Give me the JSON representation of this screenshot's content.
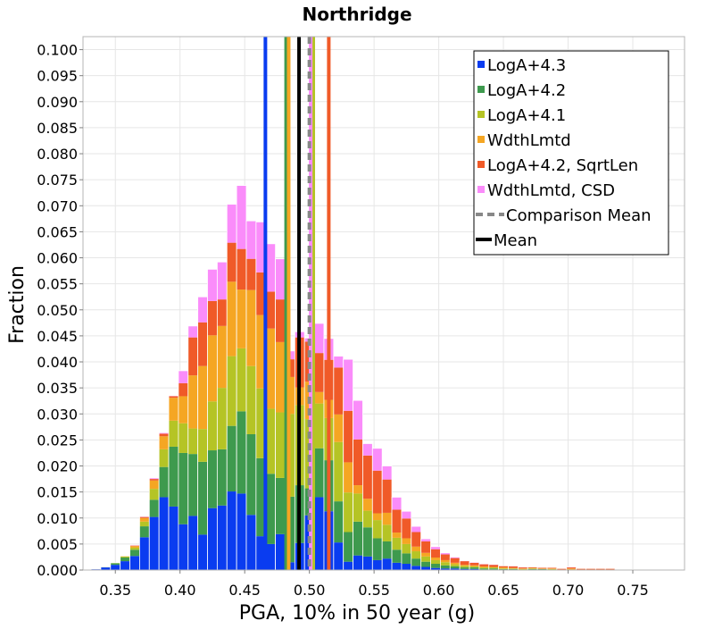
{
  "chart_data": {
    "type": "bar",
    "stacked": true,
    "title": "Northridge",
    "xlabel": "PGA, 10% in 50 year (g)",
    "ylabel": "Fraction",
    "xlim": [
      0.325,
      0.79
    ],
    "ylim": [
      0.0,
      0.1025
    ],
    "grid": true,
    "legend_position": "top-right",
    "x_ticks": [
      0.35,
      0.4,
      0.45,
      0.5,
      0.55,
      0.6,
      0.65,
      0.7,
      0.75
    ],
    "x_tick_labels": [
      "0.35",
      "0.40",
      "0.45",
      "0.50",
      "0.55",
      "0.60",
      "0.65",
      "0.70",
      "0.75"
    ],
    "y_ticks": [
      0.0,
      0.005,
      0.01,
      0.015,
      0.02,
      0.025,
      0.03,
      0.035,
      0.04,
      0.045,
      0.05,
      0.055,
      0.06,
      0.065,
      0.07,
      0.075,
      0.08,
      0.085,
      0.09,
      0.095,
      0.1
    ],
    "y_tick_labels": [
      "0.000",
      "0.005",
      "0.010",
      "0.015",
      "0.020",
      "0.025",
      "0.030",
      "0.035",
      "0.040",
      "0.045",
      "0.050",
      "0.055",
      "0.060",
      "0.065",
      "0.070",
      "0.075",
      "0.080",
      "0.085",
      "0.090",
      "0.095",
      "0.100"
    ],
    "bin_width": 0.0075,
    "x": [
      0.3275,
      0.335,
      0.3425,
      0.35,
      0.3575,
      0.365,
      0.3725,
      0.38,
      0.3875,
      0.395,
      0.4025,
      0.41,
      0.4175,
      0.425,
      0.4325,
      0.44,
      0.4475,
      0.455,
      0.4625,
      0.47,
      0.4775,
      0.485,
      0.4925,
      0.5,
      0.5075,
      0.515,
      0.5225,
      0.53,
      0.5375,
      0.545,
      0.5525,
      0.56,
      0.5675,
      0.575,
      0.5825,
      0.59,
      0.5975,
      0.605,
      0.6125,
      0.62,
      0.6275,
      0.635,
      0.6425,
      0.65,
      0.6575,
      0.665,
      0.6725,
      0.68,
      0.6875,
      0.695,
      0.7025,
      0.71,
      0.7175,
      0.725,
      0.7325,
      0.74,
      0.7475,
      0.755,
      0.7625,
      0.77,
      0.7775,
      0.785
    ],
    "series": [
      {
        "name": "LogA+4.3",
        "color": "#0a3cf0",
        "values": [
          0,
          0.0002,
          0.0005,
          0.001,
          0.0017,
          0.0027,
          0.0063,
          0.0102,
          0.014,
          0.0122,
          0.0088,
          0.0104,
          0.0068,
          0.0119,
          0.0124,
          0.0151,
          0.0147,
          0.0106,
          0.0065,
          0.005,
          0.0069,
          0.0015,
          0.0052,
          0.0105,
          0.014,
          0.0113,
          0.0053,
          0.0016,
          0.0028,
          0.0026,
          0.0019,
          0.0022,
          0.0014,
          0.0012,
          0.0008,
          0.0006,
          0.0004,
          0.0003,
          0.0003,
          0.0002,
          0.0002,
          0.0001,
          0.0001,
          0.0001,
          0.0001,
          0,
          0.0001,
          0.0001,
          0,
          0,
          0.0001,
          0,
          0,
          0,
          0,
          0,
          0,
          0,
          0,
          0,
          0,
          0
        ]
      },
      {
        "name": "LogA+4.2",
        "color": "#3e9a4e",
        "values": [
          0,
          0,
          0.0001,
          0.0003,
          0.0007,
          0.0012,
          0.0021,
          0.0033,
          0.0058,
          0.0115,
          0.0137,
          0.0119,
          0.014,
          0.0111,
          0.0108,
          0.0126,
          0.0158,
          0.0155,
          0.015,
          0.0135,
          0.0108,
          0.0126,
          0.0111,
          0.0052,
          0.0094,
          0.0098,
          0.0079,
          0.0057,
          0.0065,
          0.0056,
          0.0042,
          0.0033,
          0.0025,
          0.002,
          0.0014,
          0.001,
          0.0008,
          0.0006,
          0.0004,
          0.0003,
          0.0003,
          0.0002,
          0.0002,
          0.0001,
          0.0001,
          0.0001,
          0.0001,
          0.0001,
          0.0001,
          0,
          0,
          0,
          0,
          0,
          0,
          0,
          0,
          0,
          0,
          0,
          0,
          0
        ]
      },
      {
        "name": "LogA+4.1",
        "color": "#b5c425",
        "values": [
          0,
          0,
          0,
          0.0001,
          0.0002,
          0.0004,
          0.0009,
          0.0021,
          0.0034,
          0.005,
          0.0057,
          0.0049,
          0.0063,
          0.0094,
          0.0118,
          0.0134,
          0.0121,
          0.0131,
          0.0134,
          0.0125,
          0.0126,
          0.0159,
          0.0154,
          0.0133,
          0.0086,
          0.0081,
          0.0114,
          0.0076,
          0.0054,
          0.0032,
          0.0035,
          0.0032,
          0.0023,
          0.0018,
          0.0014,
          0.001,
          0.0007,
          0.0006,
          0.0004,
          0.0003,
          0.0002,
          0.0002,
          0.0002,
          0.0001,
          0.0001,
          0.0001,
          0.0001,
          0,
          0.0001,
          0,
          0,
          0,
          0,
          0,
          0,
          0,
          0,
          0,
          0,
          0,
          0,
          0
        ]
      },
      {
        "name": "WdthLmtd",
        "color": "#f5a623",
        "values": [
          0,
          0,
          0,
          0,
          0.0001,
          0.0003,
          0.0007,
          0.0016,
          0.0025,
          0.0044,
          0.0052,
          0.0102,
          0.0121,
          0.0127,
          0.0119,
          0.0143,
          0.0113,
          0.0146,
          0.0141,
          0.0154,
          0.0135,
          0.0071,
          0.0034,
          0.0072,
          0.0022,
          0.0035,
          0.0053,
          0.0058,
          0.0016,
          0.0023,
          0.0013,
          0.0023,
          0.001,
          0.0011,
          0.0009,
          0.0007,
          0.0005,
          0.0004,
          0.0003,
          0.0002,
          0.0002,
          0.0002,
          0.0001,
          0.0002,
          0.0001,
          0.0001,
          0.0001,
          0.0001,
          0.0001,
          0.0001,
          0.0002,
          0.0001,
          0.0001,
          0.0001,
          0.0001,
          0,
          0,
          0,
          0,
          0,
          0,
          0
        ]
      },
      {
        "name": "LogA+4.2, SqrtLen",
        "color": "#f05a28",
        "values": [
          0,
          0,
          0,
          0,
          0,
          0.0001,
          0.0002,
          0.0003,
          0.0005,
          0.0003,
          0.0025,
          0.0073,
          0.0084,
          0.0066,
          0.0051,
          0.0075,
          0.0078,
          0.006,
          0.0082,
          0.0071,
          0.0082,
          0.0034,
          0.0096,
          0.0077,
          0.0075,
          0.0077,
          0.009,
          0.0099,
          0.0088,
          0.0083,
          0.0082,
          0.0064,
          0.0044,
          0.0038,
          0.0028,
          0.0022,
          0.0016,
          0.0011,
          0.0009,
          0.0007,
          0.0005,
          0.0004,
          0.0004,
          0.0003,
          0.0003,
          0.0002,
          0.0002,
          0.0002,
          0.0002,
          0.0002,
          0.0002,
          0.0002,
          0.0002,
          0.0002,
          0.0002,
          0.0001,
          0.0001,
          0.0001,
          0,
          0,
          0,
          0
        ]
      },
      {
        "name": "WdthLmtd, CSD",
        "color": "#fa8cfa",
        "values": [
          0,
          0,
          0,
          0,
          0,
          0.0001,
          0.0001,
          0.0002,
          0.0002,
          0.0001,
          0.0024,
          0.0022,
          0.0049,
          0.0061,
          0.0072,
          0.0074,
          0.0122,
          0.0073,
          0.0097,
          0.0092,
          0.0078,
          0.0016,
          0.0011,
          0.0007,
          0.0057,
          0.0041,
          0.0022,
          0.0099,
          0.0075,
          0.0023,
          0.0043,
          0.0026,
          0.0024,
          0.0014,
          0.0011,
          0.0005,
          0.0005,
          0.0003,
          0.0002,
          0.0001,
          0.0001,
          0.0001,
          0.0001,
          0,
          0.0001,
          0.0001,
          0,
          0,
          0,
          0,
          0.0001,
          0,
          0,
          0,
          0,
          0,
          0,
          0,
          0,
          0,
          0,
          0
        ]
      }
    ],
    "vertical_lines": [
      {
        "series": "LogA+4.3",
        "x": 0.466,
        "color": "#0a3cf0"
      },
      {
        "series": "LogA+4.2",
        "x": 0.482,
        "color": "#3e9a4e"
      },
      {
        "series": "LogA+4.1",
        "x": 0.503,
        "color": "#b5c425"
      },
      {
        "series": "WdthLmtd",
        "x": 0.484,
        "color": "#f5a623"
      },
      {
        "series": "LogA+4.2, SqrtLen",
        "x": 0.515,
        "color": "#f05a28"
      },
      {
        "series": "WdthLmtd, CSD",
        "x": 0.501,
        "color": "#fa8cfa"
      },
      {
        "series": "Comparison Mean",
        "x": 0.5,
        "color": "#888888",
        "dashed": true
      },
      {
        "series": "Mean",
        "x": 0.492,
        "color": "#000000"
      }
    ],
    "legend": [
      {
        "label": "LogA+4.3",
        "color": "#0a3cf0",
        "kind": "square"
      },
      {
        "label": "LogA+4.2",
        "color": "#3e9a4e",
        "kind": "square"
      },
      {
        "label": "LogA+4.1",
        "color": "#b5c425",
        "kind": "square"
      },
      {
        "label": "WdthLmtd",
        "color": "#f5a623",
        "kind": "square"
      },
      {
        "label": "LogA+4.2, SqrtLen",
        "color": "#f05a28",
        "kind": "square"
      },
      {
        "label": "WdthLmtd, CSD",
        "color": "#fa8cfa",
        "kind": "square"
      },
      {
        "label": "Comparison Mean",
        "color": "#888888",
        "kind": "dashed"
      },
      {
        "label": "Mean",
        "color": "#000000",
        "kind": "line"
      }
    ]
  }
}
